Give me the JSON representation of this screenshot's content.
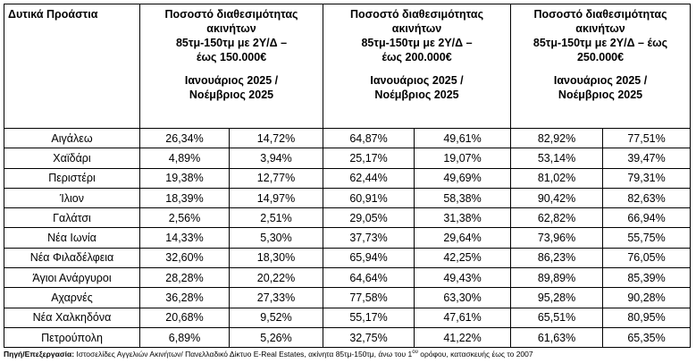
{
  "table": {
    "area_header": "Δυτικά Προάστια",
    "group_headers": [
      {
        "title_lines": [
          "Ποσοστό διαθεσιμότητας",
          "ακινήτων",
          "85τμ-150τμ με 2Υ/Δ –",
          "έως 150.000€"
        ],
        "period_lines": [
          "Ιανουάριος 2025 /",
          "Νοέμβριος 2025"
        ]
      },
      {
        "title_lines": [
          "Ποσοστό διαθεσιμότητας",
          "ακινήτων",
          "85τμ-150τμ με 2Υ/Δ –",
          "έως 200.000€"
        ],
        "period_lines": [
          "Ιανουάριος 2025 /",
          "Νοέμβριος 2025"
        ]
      },
      {
        "title_lines": [
          "Ποσοστό διαθεσιμότητας",
          "ακινήτων",
          "85τμ-150τμ με 2Υ/Δ – έως",
          "250.000€"
        ],
        "period_lines": [
          "Ιανουάριος 2025 /",
          "Νοέμβριος 2025"
        ]
      }
    ],
    "rows": [
      {
        "area": "Αιγάλεω",
        "values": [
          "26,34%",
          "14,72%",
          "64,87%",
          "49,61%",
          "82,92%",
          "77,51%"
        ]
      },
      {
        "area": "Χαϊδάρι",
        "values": [
          "4,89%",
          "3,94%",
          "25,17%",
          "19,07%",
          "53,14%",
          "39,47%"
        ]
      },
      {
        "area": "Περιστέρι",
        "values": [
          "19,38%",
          "12,77%",
          "62,44%",
          "49,69%",
          "81,02%",
          "79,31%"
        ]
      },
      {
        "area": "Ίλιον",
        "values": [
          "18,39%",
          "14,97%",
          "60,91%",
          "58,38%",
          "90,42%",
          "82,63%"
        ]
      },
      {
        "area": "Γαλάτσι",
        "values": [
          "2,56%",
          "2,51%",
          "29,05%",
          "31,38%",
          "62,82%",
          "66,94%"
        ]
      },
      {
        "area": "Νέα Ιωνία",
        "values": [
          "14,33%",
          "5,30%",
          "37,73%",
          "29,64%",
          "73,96%",
          "55,75%"
        ]
      },
      {
        "area": "Νέα Φιλαδέλφεια",
        "values": [
          "32,60%",
          "18,30%",
          "65,94%",
          "42,25%",
          "86,23%",
          "76,05%"
        ]
      },
      {
        "area": "Άγιοι Ανάργυροι",
        "values": [
          "28,28%",
          "20,22%",
          "64,64%",
          "49,43%",
          "89,89%",
          "85,39%"
        ]
      },
      {
        "area": "Αχαρνές",
        "values": [
          "36,28%",
          "27,33%",
          "77,58%",
          "63,30%",
          "95,28%",
          "90,28%"
        ]
      },
      {
        "area": "Νέα Χαλκηδόνα",
        "values": [
          "20,68%",
          "9,52%",
          "55,17%",
          "47,61%",
          "65,51%",
          "80,95%"
        ]
      },
      {
        "area": "Πετρούπολη",
        "values": [
          "6,89%",
          "5,26%",
          "32,75%",
          "41,22%",
          "61,63%",
          "65,35%"
        ]
      }
    ]
  },
  "footer": {
    "label": "Πηγή/Επεξεργασία:",
    "text_before_sup": " Ιστοσελίδες Αγγελιών Ακινήτων/ Πανελλαδικό Δίκτυο E-Real Estates, ακίνητα 85τμ-150τμ,  άνω του 1",
    "sup": "ου",
    "text_after_sup": " ορόφου, κατασκευής έως το 2007"
  }
}
